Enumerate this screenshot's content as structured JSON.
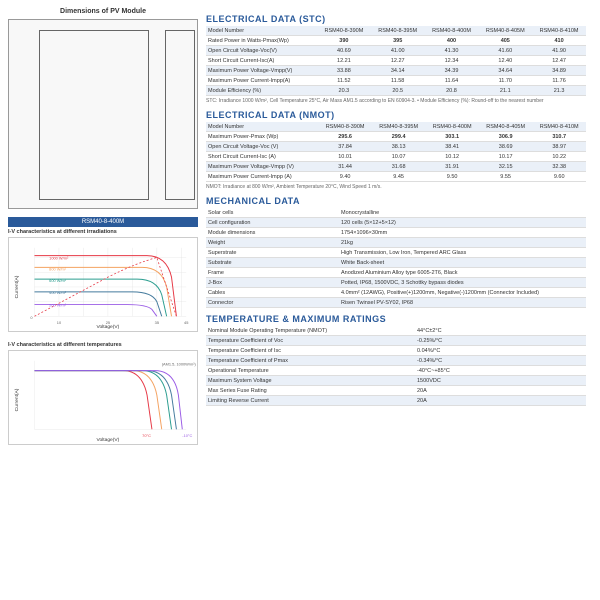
{
  "dim_title": "Dimensions of PV Module",
  "stc": {
    "title": "ELECTRICAL DATA (STC)",
    "headers": [
      "Model Number",
      "RSM40-8-390M",
      "RSM40-8-395M",
      "RSM40-8-400M",
      "RSM40-8-405M",
      "RSM40-8-410M"
    ],
    "rows": [
      [
        "Rated Power in Watts-Pmax(Wp)",
        "390",
        "395",
        "400",
        "405",
        "410"
      ],
      [
        "Open Circuit Voltage-Voc(V)",
        "40.69",
        "41.00",
        "41.30",
        "41.60",
        "41.90"
      ],
      [
        "Short Circuit Current-Isc(A)",
        "12.21",
        "12.27",
        "12.34",
        "12.40",
        "12.47"
      ],
      [
        "Maximum Power Voltage-Vmpp(V)",
        "33.88",
        "34.14",
        "34.39",
        "34.64",
        "34.89"
      ],
      [
        "Maximum Power Current-Impp(A)",
        "11.52",
        "11.58",
        "11.64",
        "11.70",
        "11.76"
      ],
      [
        "Module Efficiency (%)",
        "20.3",
        "20.5",
        "20.8",
        "21.1",
        "21.3"
      ]
    ],
    "note": "STC: Irradiance 1000 W/m², Cell Temperature 25°C, Air Mass AM1.5 according to EN 60904-3.\n• Module Efficiency (%): Round-off to the nearest number"
  },
  "nmot": {
    "title": "ELECTRICAL DATA (NMOT)",
    "headers": [
      "Model Number",
      "RSM40-8-390M",
      "RSM40-8-395M",
      "RSM40-8-400M",
      "RSM40-8-405M",
      "RSM40-8-410M"
    ],
    "rows": [
      [
        "Maximum Power-Pmax (Wp)",
        "295.6",
        "299.4",
        "303.1",
        "306.9",
        "310.7"
      ],
      [
        "Open Circuit Voltage-Voc (V)",
        "37.84",
        "38.13",
        "38.41",
        "38.69",
        "38.97"
      ],
      [
        "Short Circuit Current-Isc (A)",
        "10.01",
        "10.07",
        "10.12",
        "10.17",
        "10.22"
      ],
      [
        "Maximum Power Voltage-Vmpp (V)",
        "31.44",
        "31.68",
        "31.91",
        "32.15",
        "32.38"
      ],
      [
        "Maximum Power Current-Impp (A)",
        "9.40",
        "9.45",
        "9.50",
        "9.55",
        "9.60"
      ]
    ],
    "note": "NMOT: Irradiance at 800 W/m², Ambient Temperature 20°C, Wind Speed 1 m/s."
  },
  "mech": {
    "title": "MECHANICAL DATA",
    "rows": [
      [
        "Solar cells",
        "Monocrystalline"
      ],
      [
        "Cell configuration",
        "120 cells (5×12+5×12)"
      ],
      [
        "Module dimensions",
        "1754×1096×30mm"
      ],
      [
        "Weight",
        "21kg"
      ],
      [
        "Superstrate",
        "High Transmission, Low Iron, Tempered ARC Glass"
      ],
      [
        "Substrate",
        "White Back-sheet"
      ],
      [
        "Frame",
        "Anodized Aluminium Alloy type 6005-2T6, Black"
      ],
      [
        "J-Box",
        "Potted, IP68, 1500VDC, 3 Schottky bypass diodes"
      ],
      [
        "Cables",
        "4.0mm² (12AWG), Positive(+)1200mm, Negative(-)1200mm (Connector Included)"
      ],
      [
        "Connector",
        "Risen Twinsel PV-SY02, IP68"
      ]
    ]
  },
  "temp": {
    "title": "TEMPERATURE & MAXIMUM RATINGS",
    "rows": [
      [
        "Nominal Module Operating Temperature (NMOT)",
        "44°C±2°C"
      ],
      [
        "Temperature Coefficient of Voc",
        "-0.25%/°C"
      ],
      [
        "Temperature Coefficient of Isc",
        "0.04%/°C"
      ],
      [
        "Temperature Coefficient of Pmax",
        "-0.34%/°C"
      ],
      [
        "Operational Temperature",
        "-40°C~+85°C"
      ],
      [
        "Maximum System Voltage",
        "1500VDC"
      ],
      [
        "Max Series Fuse Rating",
        "20A"
      ],
      [
        "Limiting Reverse Current",
        "20A"
      ]
    ]
  },
  "chart1": {
    "model": "RSM40-8-400M",
    "title": "I-V characteristics at different irradiations",
    "legend": [
      "1000 W/m²",
      "800 W/m²",
      "600 W/m²",
      "400 W/m²",
      "200 W/m²"
    ],
    "colors": [
      "#e63946",
      "#f4a261",
      "#2a9d8f",
      "#457b9d",
      "#9b5de5"
    ],
    "xlabel": "Voltage(V)",
    "ylabel": "Current(A)",
    "xlim": [
      0,
      45
    ],
    "ylim": [
      0,
      14
    ]
  },
  "chart2": {
    "title": "I-V characteristics at different temperatures",
    "note": "(AM1.5, 1000W/m²)",
    "legend": [
      "70°C",
      "55°C",
      "25°C",
      "10°C",
      "-10°C"
    ],
    "colors": [
      "#e63946",
      "#f4a261",
      "#2a9d8f",
      "#457b9d",
      "#9b5de5"
    ],
    "xlabel": "Voltage(V)",
    "ylabel": "Current(A)",
    "xlim": [
      0,
      50
    ],
    "ylim": [
      0,
      14
    ]
  }
}
